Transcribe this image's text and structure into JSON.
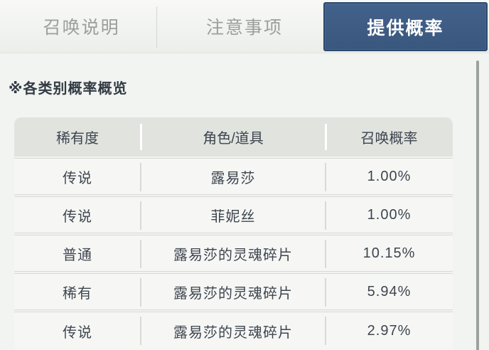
{
  "tabs": [
    {
      "label": "召唤说明",
      "active": false
    },
    {
      "label": "注意事项",
      "active": false
    },
    {
      "label": "提供概率",
      "active": true
    }
  ],
  "section": {
    "heading": "※各类别概率概览"
  },
  "table": {
    "headers": [
      "稀有度",
      "角色/道具",
      "召唤概率"
    ],
    "rows": [
      [
        "传说",
        "露易莎",
        "1.00%"
      ],
      [
        "传说",
        "菲妮丝",
        "1.00%"
      ],
      [
        "普通",
        "露易莎的灵魂碎片",
        "10.15%"
      ],
      [
        "稀有",
        "露易莎的灵魂碎片",
        "5.94%"
      ],
      [
        "传说",
        "露易莎的灵魂碎片",
        "2.97%"
      ]
    ]
  },
  "colors": {
    "active_tab_bg": "#3e5d85",
    "active_tab_border": "#2c4a6e",
    "active_tab_text": "#ffffff",
    "inactive_tab_text": "#9b9f9c",
    "table_header_bg": "#e1e3df",
    "row_bg": "#f6f7f5",
    "grid_line": "#d8dad6",
    "page_bg": "#f2f4f1",
    "body_text": "#3d454e"
  }
}
